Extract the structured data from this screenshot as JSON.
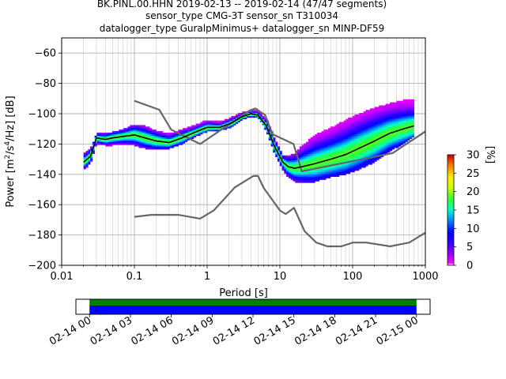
{
  "title": {
    "line1": "BK.PINL.00.HHN   2019-02-13 -- 2019-02-14  (47/47 segments)",
    "line2": "sensor_type CMG-3T sensor_sn T310034",
    "line3": "datalogger_type GuralpMinimus+ datalogger_sn MINP-DF59"
  },
  "chart_data": [
    {
      "type": "heatmap",
      "xlabel": "Period [s]",
      "ylabel_parts": [
        "Power [m",
        "2",
        "/s",
        "4",
        "/Hz] [dB]"
      ],
      "xscale": "log",
      "xlim": [
        0.01,
        1000
      ],
      "ylim": [
        -200,
        -50
      ],
      "xticks": [
        {
          "value": 0.01,
          "label": "0.01"
        },
        {
          "value": 0.1,
          "label": "0.1"
        },
        {
          "value": 1,
          "label": "1"
        },
        {
          "value": 10,
          "label": "10"
        },
        {
          "value": 100,
          "label": "100"
        },
        {
          "value": 1000,
          "label": "1000"
        }
      ],
      "yticks": [
        {
          "value": -60,
          "label": "−60"
        },
        {
          "value": -80,
          "label": "−80"
        },
        {
          "value": -100,
          "label": "−100"
        },
        {
          "value": -120,
          "label": "−120"
        },
        {
          "value": -140,
          "label": "−140"
        },
        {
          "value": -160,
          "label": "−160"
        },
        {
          "value": -180,
          "label": "−180"
        },
        {
          "value": -200,
          "label": "−200"
        }
      ],
      "grid": true,
      "series": [
        {
          "role": "noise-model-high",
          "color": "#666666",
          "x": [
            0.1,
            0.22,
            0.32,
            0.8,
            3.8,
            4.6,
            6.3,
            7.9,
            15.4,
            20,
            354.8,
            10000
          ],
          "y": [
            -91.5,
            -97.4,
            -110.5,
            -120.0,
            -98.0,
            -96.5,
            -101.0,
            -113.5,
            -120.0,
            -138.0,
            -126.0,
            -80.0
          ]
        },
        {
          "role": "noise-model-low",
          "color": "#666666",
          "x": [
            0.1,
            0.17,
            0.4,
            0.8,
            1.24,
            2.4,
            4.3,
            5.0,
            6.0,
            10.0,
            12.0,
            15.6,
            21.9,
            31.6,
            45.0,
            70.0,
            101.0,
            154.0,
            328.0,
            600.0,
            1000.0
          ],
          "y": [
            -168.0,
            -166.7,
            -166.7,
            -169.2,
            -163.7,
            -148.6,
            -141.1,
            -141.1,
            -149.0,
            -163.8,
            -166.2,
            -162.1,
            -177.5,
            -185.0,
            -187.5,
            -187.5,
            -185.0,
            -185.0,
            -187.5,
            -185.0,
            -178.5
          ]
        },
        {
          "role": "mean-psd",
          "color": "#000000",
          "x": [
            0.02,
            0.025,
            0.03,
            0.04,
            0.05,
            0.07,
            0.1,
            0.14,
            0.2,
            0.3,
            0.45,
            0.7,
            1.0,
            1.5,
            2.2,
            3.0,
            4.0,
            5.0,
            6.5,
            8.5,
            11,
            13,
            16,
            20,
            30,
            50,
            80,
            120,
            200,
            320,
            500,
            700
          ],
          "y": [
            -132,
            -128,
            -116,
            -117,
            -116,
            -115,
            -114,
            -116,
            -118,
            -119,
            -116,
            -112,
            -109,
            -109,
            -106,
            -102,
            -100,
            -101,
            -108,
            -122,
            -132,
            -135,
            -136,
            -135,
            -133,
            -130,
            -127,
            -123,
            -118,
            -113,
            -110,
            -108
          ]
        }
      ],
      "density_band": {
        "x": [
          0.02,
          0.025,
          0.03,
          0.04,
          0.05,
          0.07,
          0.1,
          0.14,
          0.2,
          0.3,
          0.45,
          0.7,
          1.0,
          1.5,
          2.2,
          3.0,
          4.0,
          5.0,
          6.5,
          8.5,
          11,
          13,
          16,
          20,
          30,
          50,
          80,
          120,
          200,
          320,
          500,
          700
        ],
        "y_low": [
          -137,
          -133,
          -120,
          -121,
          -121,
          -120,
          -121,
          -123,
          -124,
          -123,
          -120,
          -115,
          -112,
          -111,
          -109,
          -104,
          -102,
          -103,
          -111,
          -127,
          -137,
          -142,
          -145,
          -145,
          -145,
          -142,
          -140,
          -137,
          -132,
          -125,
          -120,
          -115
        ],
        "y_high": [
          -126,
          -123,
          -113,
          -113,
          -112,
          -110,
          -107,
          -108,
          -111,
          -113,
          -110,
          -107,
          -104,
          -105,
          -102,
          -99,
          -98,
          -98,
          -103,
          -116,
          -127,
          -128,
          -126,
          -121,
          -114,
          -109,
          -104,
          -100,
          -96,
          -93,
          -91,
          -90
        ]
      }
    },
    {
      "type": "colorbar",
      "label": "[%]",
      "range": [
        0,
        30
      ],
      "colormap": "pqlx",
      "ticks": [
        {
          "value": 0,
          "label": "0"
        },
        {
          "value": 5,
          "label": "5"
        },
        {
          "value": 10,
          "label": "10"
        },
        {
          "value": 15,
          "label": "15"
        },
        {
          "value": 20,
          "label": "20"
        },
        {
          "value": 25,
          "label": "25"
        },
        {
          "value": 30,
          "label": "30"
        }
      ]
    },
    {
      "type": "bar",
      "xlim_hours": [
        -1,
        25
      ],
      "segments": [
        {
          "name": "data-coverage",
          "start": 0,
          "end": 24,
          "color": "#0000ff"
        },
        {
          "name": "processed-segments",
          "start": 0,
          "end": 24,
          "color": "#008000"
        }
      ],
      "xticks": [
        {
          "value": 0,
          "label": "02-14 00"
        },
        {
          "value": 3,
          "label": "02-14 03"
        },
        {
          "value": 6,
          "label": "02-14 06"
        },
        {
          "value": 9,
          "label": "02-14 09"
        },
        {
          "value": 12,
          "label": "02-14 12"
        },
        {
          "value": 15,
          "label": "02-14 15"
        },
        {
          "value": 18,
          "label": "02-14 18"
        },
        {
          "value": 21,
          "label": "02-14 21"
        },
        {
          "value": 24,
          "label": "02-15 00"
        }
      ]
    }
  ]
}
